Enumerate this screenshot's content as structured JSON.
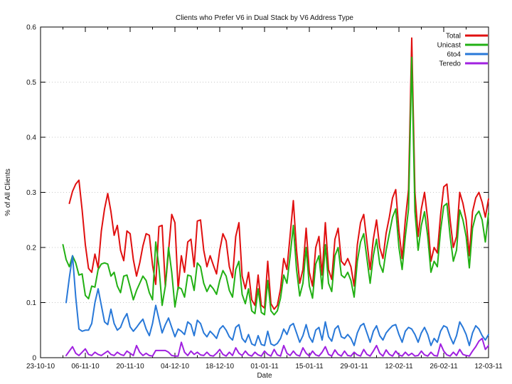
{
  "chart_data": {
    "type": "line",
    "title": "Clients who Prefer V6 in Dual Stack by V6 Address Type",
    "xlabel": "Date",
    "ylabel": "% of All Clients",
    "ylim": [
      0,
      0.6
    ],
    "y_ticks": [
      0,
      0.1,
      0.2,
      0.3,
      0.4,
      0.5,
      0.6
    ],
    "x_axis": {
      "range_days": [
        0,
        140
      ],
      "major_tick_interval_days": 14,
      "minor_tick_interval_days": 7,
      "tick_labels": [
        "23-10-10",
        "06-11-10",
        "20-11-10",
        "04-12-10",
        "18-12-10",
        "01-01-11",
        "15-01-11",
        "29-01-11",
        "12-02-11",
        "26-02-11",
        "12-03-11"
      ]
    },
    "grid": {
      "horizontal": true,
      "vertical": false,
      "style": "dotted",
      "color": "#c8c8c8"
    },
    "legend": {
      "position": "top-right",
      "entries": [
        "Total",
        "Unicast",
        "6to4",
        "Teredo"
      ]
    },
    "days_since_first_tick": [
      7,
      8,
      9,
      10,
      11,
      12,
      13,
      14,
      15,
      16,
      17,
      18,
      19,
      20,
      21,
      22,
      23,
      24,
      25,
      26,
      27,
      28,
      29,
      30,
      31,
      32,
      33,
      34,
      35,
      36,
      37,
      38,
      39,
      40,
      41,
      42,
      43,
      44,
      45,
      46,
      47,
      48,
      49,
      50,
      51,
      52,
      53,
      54,
      55,
      56,
      57,
      58,
      59,
      60,
      61,
      62,
      63,
      64,
      65,
      66,
      67,
      68,
      69,
      70,
      71,
      72,
      73,
      74,
      75,
      76,
      77,
      78,
      79,
      80,
      81,
      82,
      83,
      84,
      85,
      86,
      87,
      88,
      89,
      90,
      91,
      92,
      93,
      94,
      95,
      96,
      97,
      98,
      99,
      100,
      101,
      102,
      103,
      104,
      105,
      106,
      107,
      108,
      109,
      110,
      111,
      112,
      113,
      114,
      115,
      116,
      117,
      118,
      119,
      120,
      121,
      122,
      123,
      124,
      125,
      126,
      127,
      128,
      129,
      130,
      131,
      132,
      133,
      134,
      135,
      136,
      137,
      138,
      139,
      140
    ],
    "series": [
      {
        "name": "Total",
        "color": "#e01010",
        "values": [
          null,
          null,
          0.28,
          0.302,
          0.315,
          0.322,
          0.268,
          0.205,
          0.162,
          0.155,
          0.188,
          0.163,
          0.23,
          0.27,
          0.298,
          0.265,
          0.222,
          0.24,
          0.195,
          0.176,
          0.23,
          0.225,
          0.178,
          0.148,
          0.172,
          0.203,
          0.225,
          0.222,
          0.168,
          0.133,
          0.238,
          0.24,
          0.129,
          0.193,
          0.26,
          0.245,
          0.124,
          0.185,
          0.155,
          0.21,
          0.215,
          0.165,
          0.248,
          0.25,
          0.195,
          0.165,
          0.185,
          0.168,
          0.152,
          0.195,
          0.225,
          0.212,
          0.165,
          0.145,
          0.22,
          0.245,
          0.148,
          0.125,
          0.155,
          0.105,
          0.095,
          0.15,
          0.095,
          0.09,
          0.175,
          0.098,
          0.088,
          0.095,
          0.125,
          0.18,
          0.16,
          0.222,
          0.285,
          0.195,
          0.135,
          0.16,
          0.235,
          0.155,
          0.13,
          0.2,
          0.22,
          0.15,
          0.245,
          0.16,
          0.142,
          0.215,
          0.235,
          0.175,
          0.168,
          0.18,
          0.165,
          0.13,
          0.205,
          0.245,
          0.26,
          0.21,
          0.16,
          0.215,
          0.25,
          0.2,
          0.18,
          0.226,
          0.255,
          0.29,
          0.305,
          0.23,
          0.18,
          0.25,
          0.305,
          0.58,
          0.3,
          0.22,
          0.27,
          0.3,
          0.25,
          0.175,
          0.2,
          0.19,
          0.258,
          0.31,
          0.315,
          0.25,
          0.2,
          0.22,
          0.3,
          0.28,
          0.25,
          0.185,
          0.265,
          0.29,
          0.3,
          0.282,
          0.255,
          0.288
        ]
      },
      {
        "name": "Unicast",
        "color": "#22b014",
        "values": [
          0.205,
          0.178,
          0.165,
          0.185,
          0.172,
          0.15,
          0.152,
          0.113,
          0.107,
          0.13,
          0.128,
          0.16,
          0.17,
          0.172,
          0.17,
          0.148,
          0.155,
          0.13,
          0.118,
          0.148,
          0.15,
          0.128,
          0.105,
          0.122,
          0.135,
          0.148,
          0.14,
          0.118,
          0.105,
          0.21,
          0.165,
          0.095,
          0.13,
          0.2,
          0.155,
          0.092,
          0.128,
          0.125,
          0.11,
          0.15,
          0.148,
          0.122,
          0.172,
          0.165,
          0.135,
          0.12,
          0.132,
          0.125,
          0.115,
          0.14,
          0.158,
          0.148,
          0.122,
          0.11,
          0.16,
          0.175,
          0.115,
          0.098,
          0.125,
          0.085,
          0.08,
          0.125,
          0.082,
          0.078,
          0.14,
          0.085,
          0.078,
          0.085,
          0.108,
          0.15,
          0.135,
          0.185,
          0.24,
          0.16,
          0.112,
          0.135,
          0.2,
          0.13,
          0.108,
          0.17,
          0.185,
          0.125,
          0.205,
          0.135,
          0.12,
          0.185,
          0.2,
          0.15,
          0.145,
          0.155,
          0.14,
          0.11,
          0.175,
          0.21,
          0.225,
          0.18,
          0.135,
          0.185,
          0.215,
          0.17,
          0.155,
          0.195,
          0.225,
          0.255,
          0.27,
          0.2,
          0.16,
          0.22,
          0.27,
          0.545,
          0.265,
          0.195,
          0.24,
          0.265,
          0.22,
          0.155,
          0.175,
          0.165,
          0.23,
          0.275,
          0.28,
          0.22,
          0.175,
          0.195,
          0.268,
          0.25,
          0.22,
          0.163,
          0.235,
          0.258,
          0.266,
          0.25,
          0.21,
          0.262
        ]
      },
      {
        "name": "6to4",
        "color": "#2878d8",
        "values": [
          null,
          0.1,
          0.145,
          0.185,
          0.11,
          0.052,
          0.048,
          0.05,
          0.05,
          0.062,
          0.1,
          0.125,
          0.095,
          0.065,
          0.06,
          0.088,
          0.062,
          0.05,
          0.055,
          0.07,
          0.08,
          0.056,
          0.048,
          0.055,
          0.063,
          0.07,
          0.052,
          0.04,
          0.062,
          0.095,
          0.07,
          0.045,
          0.06,
          0.072,
          0.055,
          0.038,
          0.052,
          0.048,
          0.042,
          0.065,
          0.06,
          0.04,
          0.068,
          0.062,
          0.045,
          0.038,
          0.048,
          0.042,
          0.035,
          0.052,
          0.058,
          0.05,
          0.038,
          0.032,
          0.055,
          0.06,
          0.035,
          0.028,
          0.042,
          0.025,
          0.022,
          0.04,
          0.024,
          0.022,
          0.048,
          0.025,
          0.022,
          0.026,
          0.035,
          0.052,
          0.042,
          0.058,
          0.062,
          0.045,
          0.028,
          0.04,
          0.06,
          0.038,
          0.028,
          0.05,
          0.055,
          0.032,
          0.065,
          0.038,
          0.03,
          0.052,
          0.058,
          0.038,
          0.035,
          0.042,
          0.035,
          0.022,
          0.045,
          0.058,
          0.062,
          0.045,
          0.028,
          0.048,
          0.058,
          0.04,
          0.032,
          0.045,
          0.052,
          0.058,
          0.06,
          0.042,
          0.028,
          0.048,
          0.055,
          0.052,
          0.042,
          0.028,
          0.045,
          0.055,
          0.042,
          0.022,
          0.035,
          0.028,
          0.048,
          0.058,
          0.055,
          0.038,
          0.025,
          0.04,
          0.065,
          0.055,
          0.042,
          0.022,
          0.045,
          0.058,
          0.052,
          0.04,
          0.032,
          0.042
        ]
      },
      {
        "name": "Teredo",
        "color": "#a020e0",
        "values": [
          null,
          0.004,
          0.012,
          0.02,
          0.008,
          0.004,
          0.01,
          0.016,
          0.006,
          0.004,
          0.01,
          0.006,
          0.004,
          0.008,
          0.012,
          0.006,
          0.004,
          0.01,
          0.006,
          0.004,
          0.012,
          0.008,
          0.004,
          0.022,
          0.01,
          0.004,
          0.008,
          0.004,
          0.003,
          0.013,
          0.013,
          0.013,
          0.013,
          0.01,
          0.004,
          0.003,
          0.003,
          0.028,
          0.01,
          0.004,
          0.012,
          0.006,
          0.01,
          0.005,
          0.004,
          0.01,
          0.004,
          0.003,
          0.008,
          0.015,
          0.006,
          0.003,
          0.01,
          0.004,
          0.018,
          0.008,
          0.004,
          0.012,
          0.005,
          0.003,
          0.01,
          0.005,
          0.003,
          0.012,
          0.006,
          0.003,
          0.015,
          0.005,
          0.003,
          0.022,
          0.008,
          0.004,
          0.012,
          0.005,
          0.003,
          0.018,
          0.008,
          0.003,
          0.012,
          0.005,
          0.003,
          0.01,
          0.02,
          0.006,
          0.003,
          0.014,
          0.006,
          0.003,
          0.012,
          0.004,
          0.003,
          0.01,
          0.005,
          0.003,
          0.015,
          0.006,
          0.003,
          0.012,
          0.022,
          0.008,
          0.003,
          0.014,
          0.006,
          0.003,
          0.012,
          0.005,
          0.003,
          0.01,
          0.004,
          0.008,
          0.003,
          0.004,
          0.012,
          0.005,
          0.003,
          0.01,
          0.004,
          0.003,
          0.025,
          0.012,
          0.005,
          0.003,
          0.01,
          0.004,
          0.015,
          0.006,
          0.004,
          0.003,
          0.012,
          0.02,
          0.03,
          0.035,
          0.015,
          0.022
        ]
      }
    ]
  },
  "layout_colors": {
    "background": "#ffffff",
    "border": "#000000",
    "text": "#111111"
  }
}
